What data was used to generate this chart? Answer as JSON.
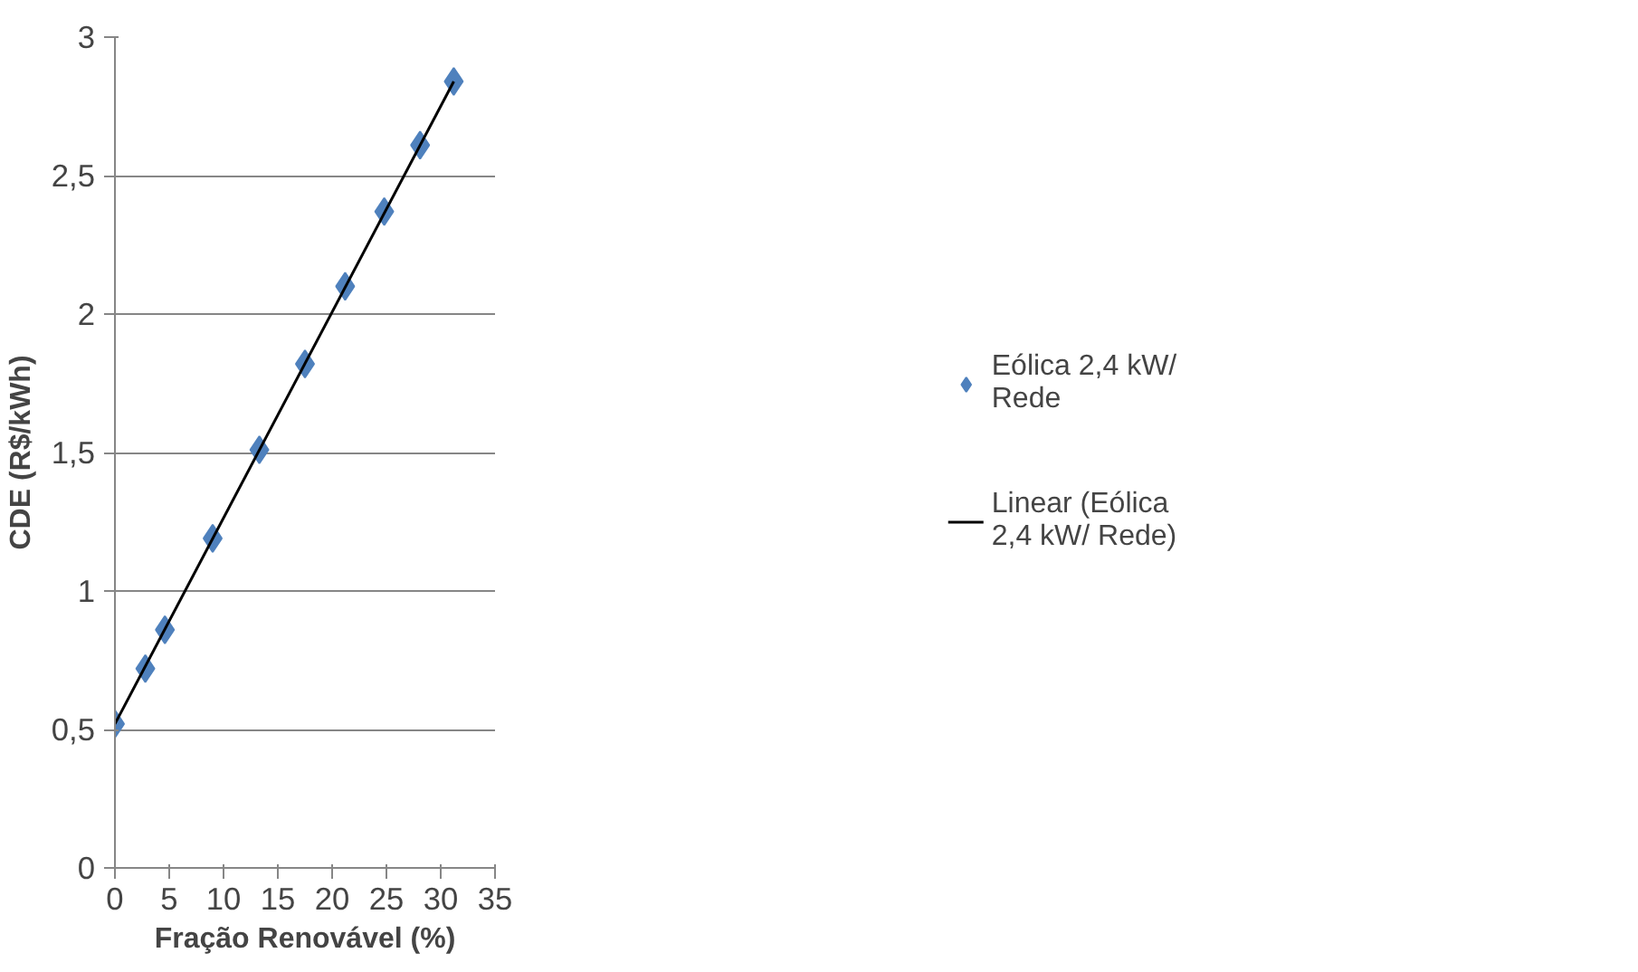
{
  "chart_data": {
    "type": "scatter",
    "xlabel": "Fração Renovável (%)",
    "ylabel": "CDE (R$/kWh)",
    "series": [
      {
        "name": "Eólica 2,4 kW/ Rede",
        "color": "#4f81bd",
        "marker": "diamond",
        "x": [
          0,
          2.8,
          4.6,
          9.0,
          13.3,
          17.5,
          21.2,
          24.8,
          28.1,
          31.2
        ],
        "values": [
          0.52,
          0.72,
          0.86,
          1.19,
          1.51,
          1.82,
          2.1,
          2.37,
          2.61,
          2.84
        ]
      },
      {
        "name": "Linear (Eólica 2,4 kW/ Rede)",
        "type": "line",
        "color": "#000000",
        "line_style": "solid",
        "x": [
          0,
          31.2
        ],
        "values": [
          0.52,
          2.84
        ]
      }
    ],
    "xlim": [
      0,
      35
    ],
    "xticks": [
      0,
      5,
      10,
      15,
      20,
      25,
      30,
      35
    ],
    "ylim": [
      0,
      3
    ],
    "yticks": [
      0,
      {
        "value": 0.5,
        "label": "0,5"
      },
      1,
      {
        "value": 1.5,
        "label": "1,5"
      },
      2,
      {
        "value": 2.5,
        "label": "2,5"
      },
      3
    ],
    "grid": "y",
    "legend": "right"
  }
}
